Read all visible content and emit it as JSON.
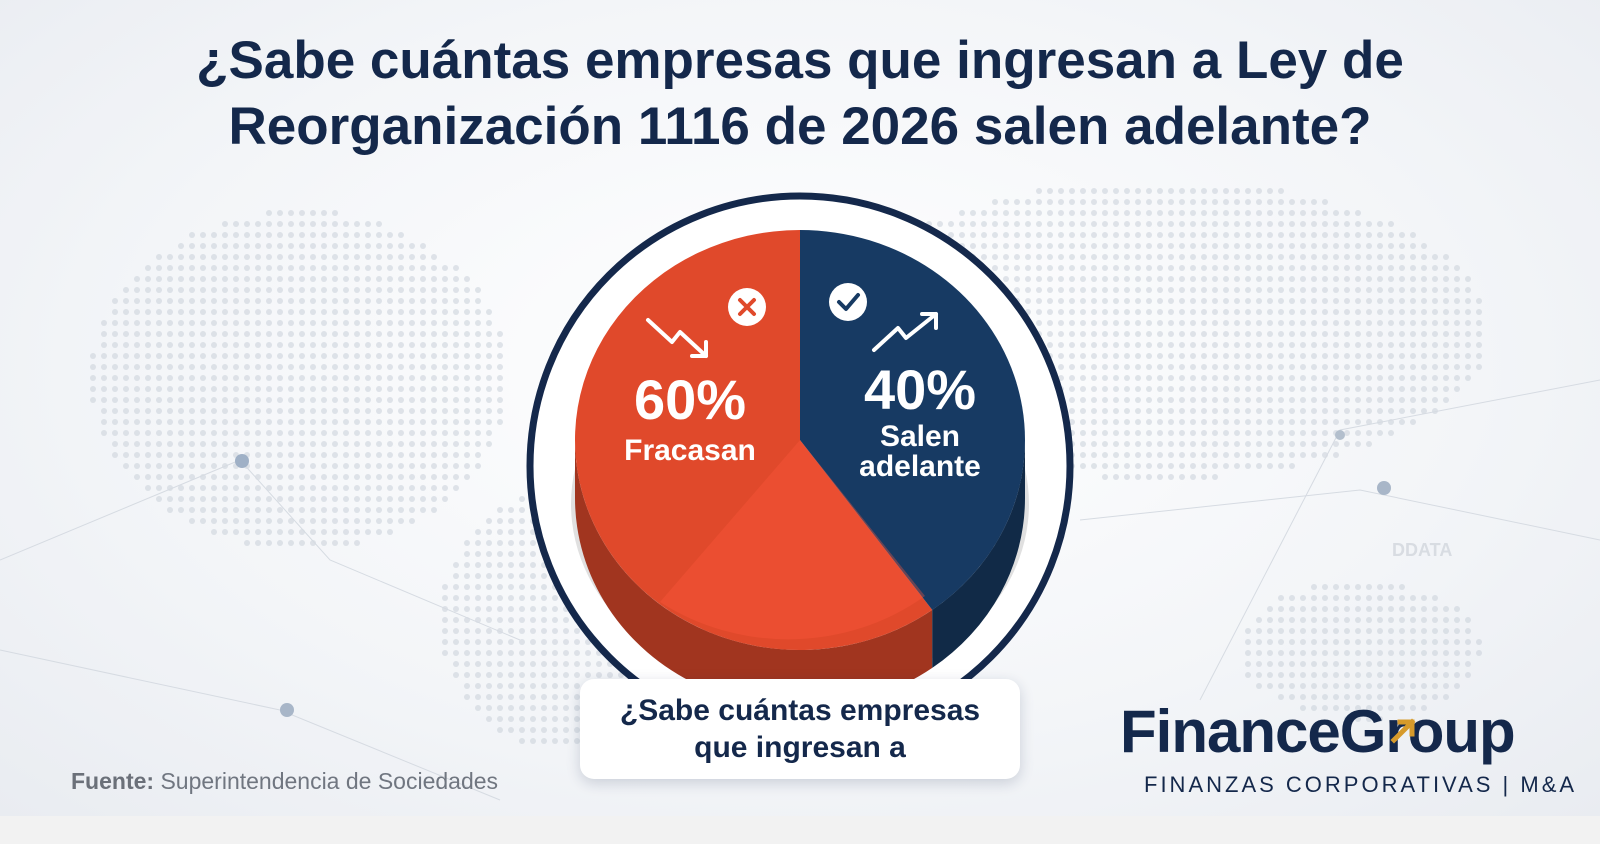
{
  "title": {
    "line1": "¿Sabe cuántas empresas que ingresan a Ley de",
    "line2": "Reorganización 1116 de 2026 salen adelante?"
  },
  "chart_data": {
    "type": "pie",
    "title": "¿Sabe cuántas empresas que ingresan a Ley de Reorganización 1116 de 2026 salen adelante?",
    "slices": [
      {
        "label": "Fracasan",
        "value": 60,
        "value_label": "60%",
        "color": "#e0492b",
        "icon": "x-circle-icon",
        "trend_icon": "trend-down-arrow-icon"
      },
      {
        "label": "Salen adelante",
        "value": 40,
        "value_label": "40%",
        "label_lines": [
          "Salen",
          "adelante"
        ],
        "color": "#173a63",
        "icon": "check-circle-icon",
        "trend_icon": "trend-up-arrow-icon"
      }
    ],
    "legend": "none",
    "grid": false
  },
  "caption": {
    "line1": "¿Sabe cuántas empresas",
    "line2": "que ingresan a"
  },
  "source": {
    "label": "Fuente:",
    "text": "Superintendencia de Sociedades"
  },
  "watermark": "DDATA",
  "logo": {
    "name": "FinanceGroup",
    "tagline": "FINANZAS CORPORATIVAS | M&A",
    "accent_color": "#d69a2b",
    "brand_color": "#14284b"
  }
}
